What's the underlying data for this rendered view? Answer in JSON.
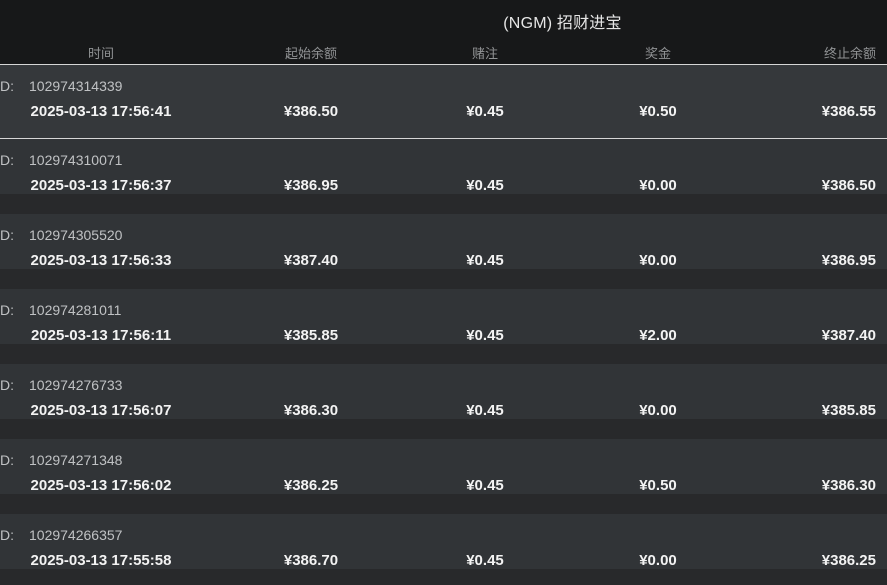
{
  "title": "(NGM) 招财进宝",
  "table": {
    "columns": [
      "时间",
      "起始余额",
      "赌注",
      "奖金",
      "终止余额"
    ],
    "id_label": "D:",
    "rows": [
      {
        "id": "102974314339",
        "time": "2025-03-13 17:56:41",
        "start": "¥386.50",
        "bet": "¥0.45",
        "prize": "¥0.50",
        "end": "¥386.55"
      },
      {
        "id": "102974310071",
        "time": "2025-03-13 17:56:37",
        "start": "¥386.95",
        "bet": "¥0.45",
        "prize": "¥0.00",
        "end": "¥386.50"
      },
      {
        "id": "102974305520",
        "time": "2025-03-13 17:56:33",
        "start": "¥387.40",
        "bet": "¥0.45",
        "prize": "¥0.00",
        "end": "¥386.95"
      },
      {
        "id": "102974281011",
        "time": "2025-03-13 17:56:11",
        "start": "¥385.85",
        "bet": "¥0.45",
        "prize": "¥2.00",
        "end": "¥387.40"
      },
      {
        "id": "102974276733",
        "time": "2025-03-13 17:56:07",
        "start": "¥386.30",
        "bet": "¥0.45",
        "prize": "¥0.00",
        "end": "¥385.85"
      },
      {
        "id": "102974271348",
        "time": "2025-03-13 17:56:02",
        "start": "¥386.25",
        "bet": "¥0.45",
        "prize": "¥0.50",
        "end": "¥386.30"
      },
      {
        "id": "102974266357",
        "time": "2025-03-13 17:55:58",
        "start": "¥386.70",
        "bet": "¥0.45",
        "prize": "¥0.00",
        "end": "¥386.25"
      }
    ]
  },
  "colors": {
    "header_bg": "#171819",
    "row_bg": "#313437",
    "page_bg": "#28292b",
    "separator": "#d6d6d6",
    "value_text": "#f3f3f3",
    "muted_text": "#909294"
  }
}
